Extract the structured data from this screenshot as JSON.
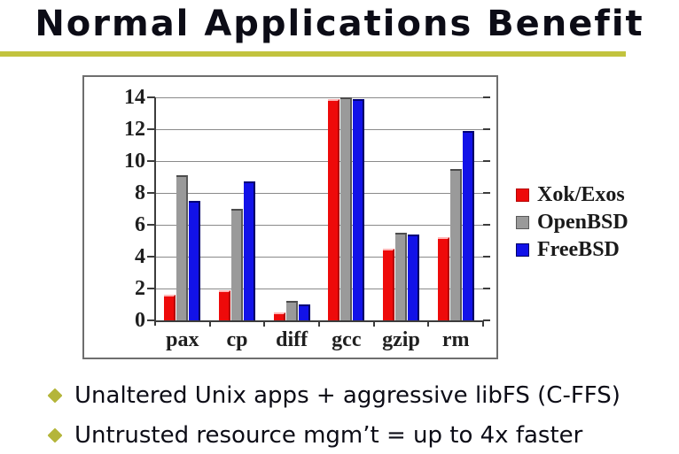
{
  "slide": {
    "title": "Normal Applications Benefit",
    "bullets": [
      "Unaltered Unix apps + aggressive libFS (C-FFS)",
      "Untrusted resource mgm’t = up to 4x faster"
    ],
    "colors": {
      "title_text": "#0c0c16",
      "underline": "#c2c33e",
      "bullet_diamond": "#b4b53a"
    }
  },
  "chart_data": {
    "type": "bar",
    "title": "",
    "xlabel": "",
    "ylabel": "",
    "categories": [
      "pax",
      "cp",
      "diff",
      "gcc",
      "gzip",
      "rm"
    ],
    "series": [
      {
        "name": "Xok/Exos",
        "color": "#ee0a0a",
        "edge_top": "#ffb5b5",
        "edge_right": "#b40000",
        "values": [
          1.6,
          1.9,
          0.5,
          13.9,
          4.5,
          5.2
        ]
      },
      {
        "name": "OpenBSD",
        "color": "#9a9a9a",
        "edge_top": "#4c4c4c",
        "edge_right": "#5a5a5a",
        "values": [
          9.1,
          7.0,
          1.2,
          14.0,
          5.5,
          9.5
        ]
      },
      {
        "name": "FreeBSD",
        "color": "#1212e8",
        "edge_top": "#000078",
        "edge_right": "#000064",
        "values": [
          7.5,
          8.7,
          1.0,
          13.9,
          5.4,
          11.9
        ]
      }
    ],
    "ylim": [
      0,
      14
    ],
    "yticks": [
      0,
      2,
      4,
      6,
      8,
      10,
      12,
      14
    ],
    "grid": true,
    "legend_position": "right"
  }
}
